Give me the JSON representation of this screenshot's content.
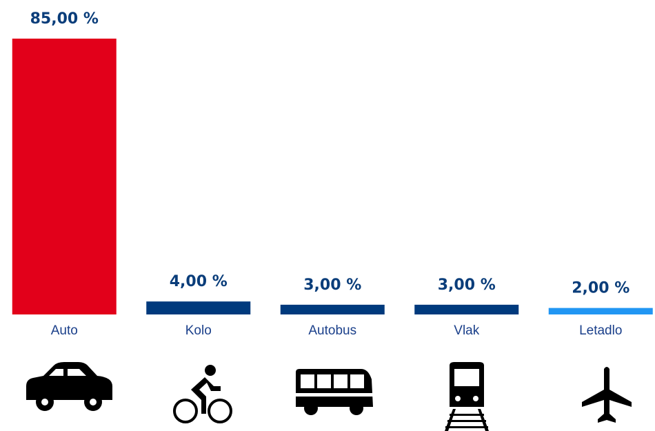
{
  "chart_data": {
    "type": "bar",
    "categories": [
      "Auto",
      "Kolo",
      "Autobus",
      "Vlak",
      "Letadlo"
    ],
    "values": [
      85,
      4,
      3,
      3,
      2
    ],
    "value_labels": [
      "85,00 %",
      "4,00 %",
      "3,00 %",
      "3,00 %",
      "2,00 %"
    ],
    "colors": [
      "#e2001a",
      "#003a7d",
      "#003a7d",
      "#003a7d",
      "#2196f3"
    ]
  }
}
